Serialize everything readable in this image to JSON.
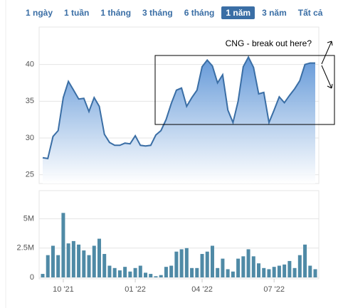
{
  "range_buttons": [
    "1 ngày",
    "1 tuần",
    "1 tháng",
    "3 tháng",
    "6 tháng",
    "1 năm",
    "3 năm",
    "Tất cả"
  ],
  "chart_data": [
    {
      "type": "area",
      "annotation": "CNG - break out here?",
      "color": "#3a6ea5",
      "values": [
        27.3,
        27.2,
        30.2,
        31,
        35.5,
        37.7,
        36.5,
        35.3,
        35.4,
        33.6,
        35.5,
        34.3,
        30.5,
        29.4,
        29,
        29,
        29.3,
        29.2,
        30.3,
        29,
        28.9,
        29,
        30.4,
        31,
        32.5,
        34.7,
        36.5,
        36.8,
        34.3,
        35.5,
        36.5,
        39.7,
        40.6,
        39.8,
        37.5,
        38.6,
        33.8,
        32.1,
        35,
        39.7,
        41,
        39.6,
        36,
        36.2,
        32.1,
        33.8,
        35.6,
        34.8,
        35.8,
        36.7,
        37.8,
        40,
        40.2,
        40.2
      ],
      "ylim": [
        23.8,
        45.1
      ],
      "yticks": [
        25,
        30,
        35,
        40
      ],
      "grid": true
    },
    {
      "type": "bar",
      "color": "#4f8aa6",
      "categories": [
        null,
        null,
        null,
        null,
        "10 '21",
        null,
        null,
        null,
        null,
        null,
        null,
        null,
        null,
        null,
        null,
        null,
        null,
        null,
        "01 '22",
        null,
        null,
        null,
        null,
        null,
        null,
        null,
        null,
        null,
        null,
        null,
        null,
        "04 '22",
        null,
        null,
        null,
        null,
        null,
        null,
        null,
        null,
        null,
        null,
        null,
        null,
        null,
        "07 '22",
        null,
        null,
        null,
        null,
        null,
        null,
        null,
        null
      ],
      "values": [
        300000,
        1900000,
        2700000,
        1900000,
        5500000,
        2900000,
        3100000,
        2800000,
        2300000,
        1900000,
        2700000,
        3300000,
        2000000,
        1000000,
        800000,
        600000,
        900000,
        500000,
        800000,
        1000000,
        400000,
        300000,
        100000,
        200000,
        900000,
        1000000,
        2200000,
        2400000,
        2500000,
        800000,
        800000,
        2000000,
        2200000,
        2700000,
        800000,
        1600000,
        700000,
        500000,
        1600000,
        1800000,
        2400000,
        1800000,
        1200000,
        800000,
        700000,
        900000,
        1000000,
        1100000,
        1400000,
        800000,
        1900000,
        2800000,
        1000000,
        700000
      ],
      "ylim": [
        0,
        7400000
      ],
      "yticks": [
        {
          "value": 0,
          "label": "0"
        },
        {
          "value": 2500000,
          "label": "2.5M"
        },
        {
          "value": 5000000,
          "label": "5M"
        }
      ],
      "grid": true
    }
  ]
}
